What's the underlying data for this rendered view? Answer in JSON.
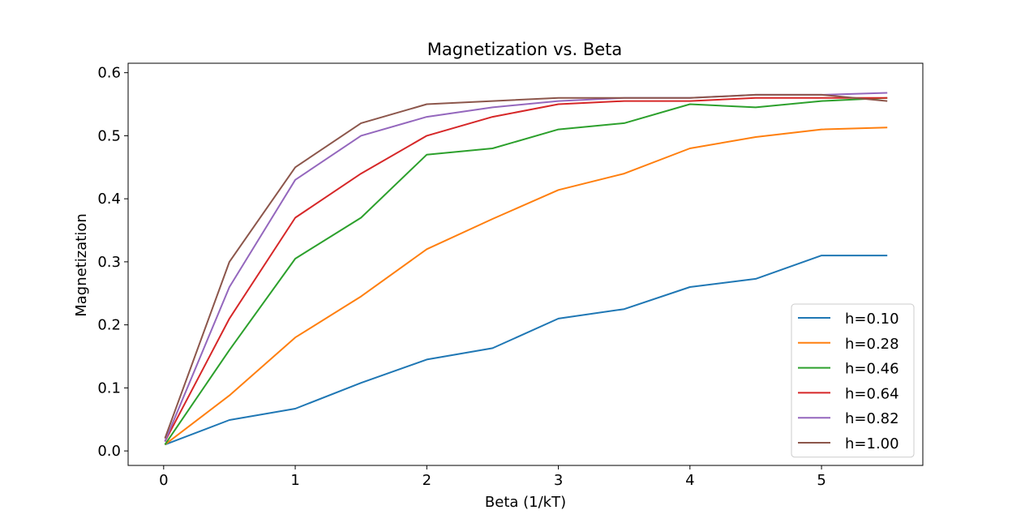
{
  "chart_data": {
    "type": "line",
    "title": "Magnetization vs. Beta",
    "xlabel": "Beta (1/kT)",
    "ylabel": "Magnetization",
    "xlim": [
      -0.27,
      5.77
    ],
    "ylim": [
      -0.023,
      0.615
    ],
    "xticks": [
      0,
      1,
      2,
      3,
      4,
      5
    ],
    "yticks": [
      0.0,
      0.1,
      0.2,
      0.3,
      0.4,
      0.5,
      0.6
    ],
    "xtick_labels": [
      "0",
      "1",
      "2",
      "3",
      "4",
      "5"
    ],
    "ytick_labels": [
      "0.0",
      "0.1",
      "0.2",
      "0.3",
      "0.4",
      "0.5",
      "0.6"
    ],
    "legend_position": "lower-right",
    "grid": false,
    "x": [
      0.01,
      0.5,
      1.0,
      1.5,
      2.0,
      2.5,
      3.0,
      3.5,
      4.0,
      4.5,
      5.0,
      5.5
    ],
    "series": [
      {
        "name": "h=0.10",
        "color": "#1f77b4",
        "values": [
          0.01,
          0.049,
          0.067,
          0.108,
          0.145,
          0.163,
          0.21,
          0.225,
          0.26,
          0.273,
          0.31,
          0.31
        ]
      },
      {
        "name": "h=0.28",
        "color": "#ff7f0e",
        "values": [
          0.01,
          0.088,
          0.18,
          0.245,
          0.32,
          0.368,
          0.414,
          0.44,
          0.48,
          0.498,
          0.51,
          0.513
        ]
      },
      {
        "name": "h=0.46",
        "color": "#2ca02c",
        "values": [
          0.01,
          0.16,
          0.305,
          0.37,
          0.47,
          0.48,
          0.51,
          0.52,
          0.55,
          0.545,
          0.555,
          0.56
        ]
      },
      {
        "name": "h=0.64",
        "color": "#d62728",
        "values": [
          0.015,
          0.21,
          0.37,
          0.44,
          0.5,
          0.53,
          0.55,
          0.555,
          0.555,
          0.56,
          0.56,
          0.56
        ]
      },
      {
        "name": "h=0.82",
        "color": "#9467bd",
        "values": [
          0.015,
          0.26,
          0.43,
          0.5,
          0.53,
          0.545,
          0.555,
          0.56,
          0.56,
          0.565,
          0.565,
          0.568
        ]
      },
      {
        "name": "h=1.00",
        "color": "#8c564b",
        "values": [
          0.02,
          0.3,
          0.45,
          0.52,
          0.55,
          0.555,
          0.56,
          0.56,
          0.56,
          0.565,
          0.565,
          0.555
        ]
      }
    ]
  }
}
